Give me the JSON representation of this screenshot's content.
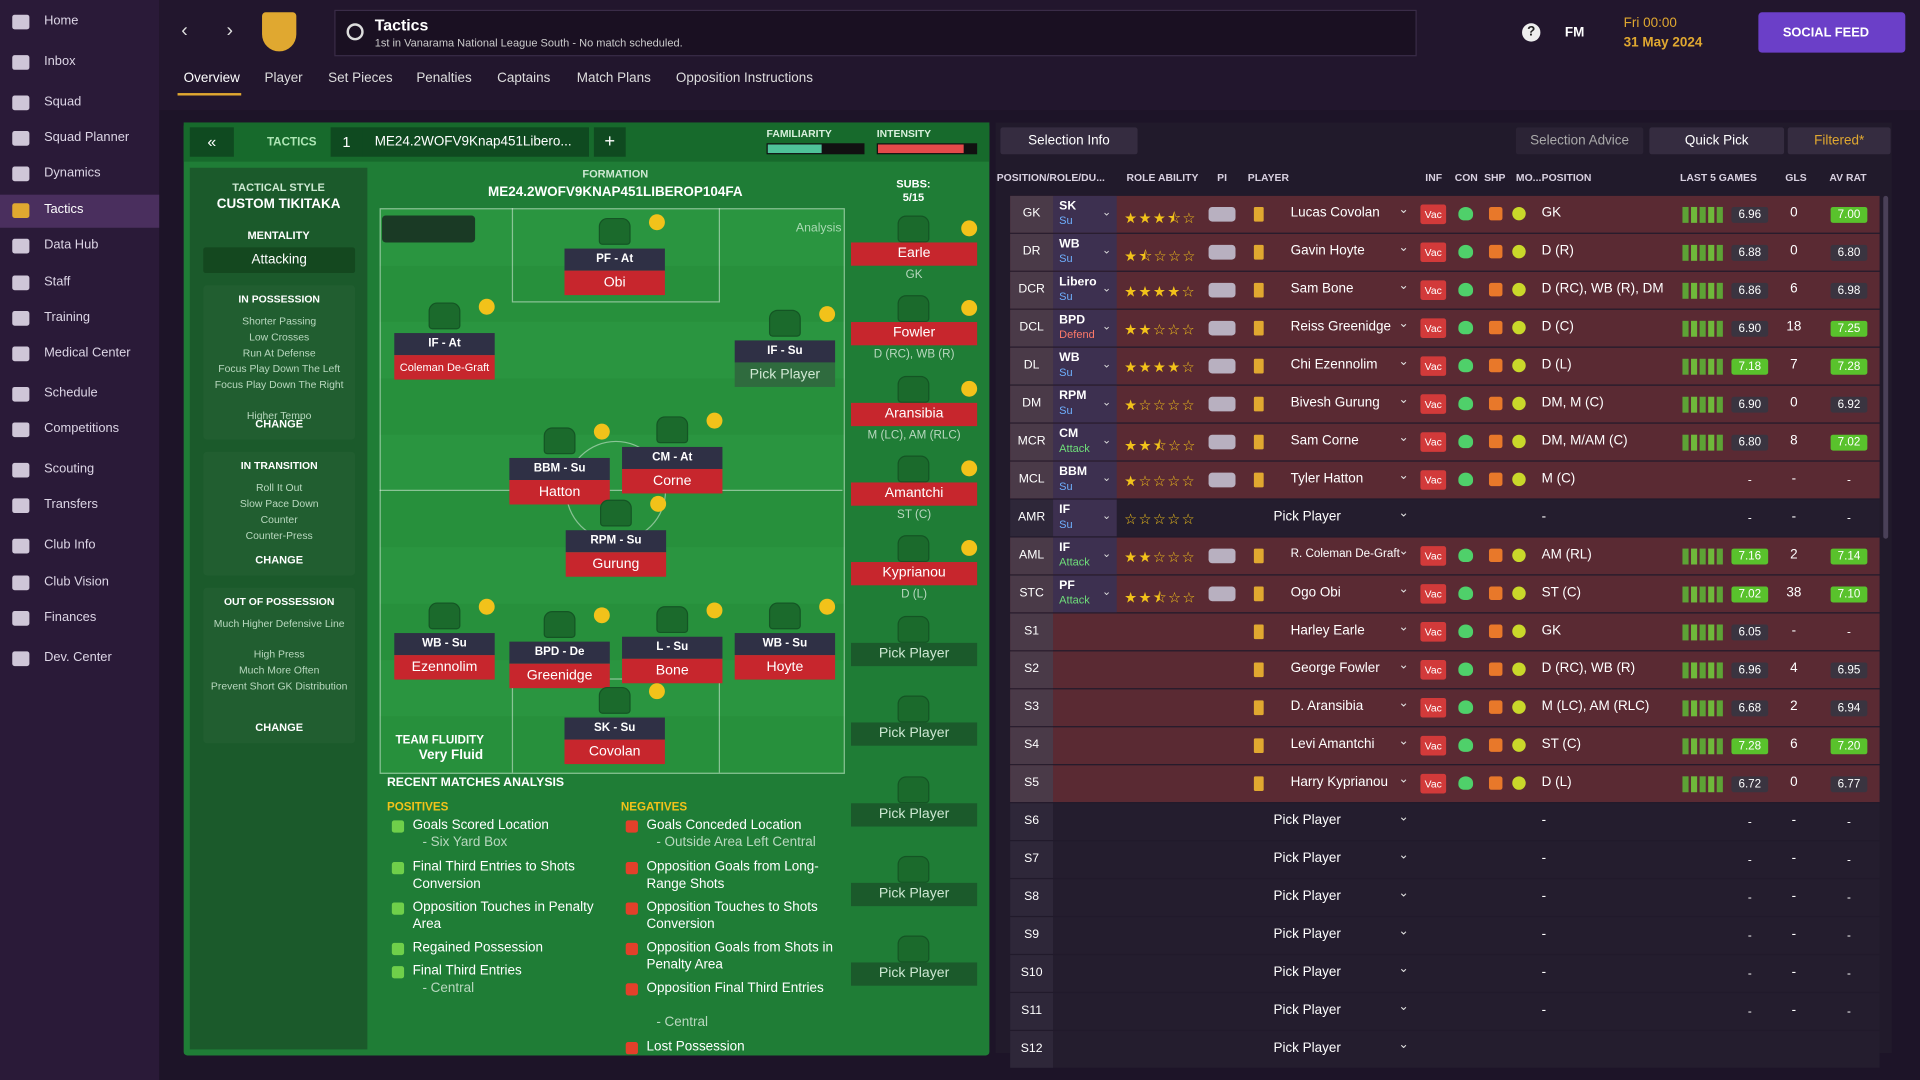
{
  "sidebar": [
    "Home",
    "Inbox",
    "Squad",
    "Squad Planner",
    "Dynamics",
    "Tactics",
    "Data Hub",
    "Staff",
    "Training",
    "Medical Center",
    "Schedule",
    "Competitions",
    "Scouting",
    "Transfers",
    "Club Info",
    "Club Vision",
    "Finances",
    "Dev. Center"
  ],
  "header": {
    "title": "Tactics",
    "subtitle": "1st in Vanarama National League South - No match scheduled.",
    "brand": "FM",
    "time": "Fri 00:00",
    "date": "31 May 2024",
    "social": "SOCIAL FEED"
  },
  "tabs": [
    "Overview",
    "Player",
    "Set Pieces",
    "Penalties",
    "Captains",
    "Match Plans",
    "Opposition Instructions"
  ],
  "tactic": {
    "label": "TACTICS",
    "slot": "1",
    "name": "ME24.2WOFV9Knap451Libero...",
    "familiarity": "FAMILIARITY",
    "intensity": "INTENSITY",
    "style_label": "TACTICAL STYLE",
    "style": "CUSTOM TIKITAKA",
    "mentality_label": "MENTALITY",
    "mentality": "Attacking",
    "change": "CHANGE",
    "sections": [
      {
        "title": "IN POSSESSION",
        "items": [
          "Shorter Passing",
          "Low Crosses",
          "Run At Defense",
          "Focus Play Down The Left",
          "Focus Play Down The Right",
          "Higher Tempo"
        ]
      },
      {
        "title": "IN TRANSITION",
        "items": [
          "Roll It Out",
          "Slow Pace Down",
          "Counter",
          "Counter-Press"
        ]
      },
      {
        "title": "OUT OF POSSESSION",
        "items": [
          "Much Higher Defensive Line",
          "High Press",
          "Much More Often",
          "Prevent Short GK Distribution"
        ]
      }
    ],
    "formation_label": "FORMATION",
    "formation": "ME24.2WOFV9KNAP451LIBEROP104FA",
    "subs_label": "SUBS:",
    "subs_count": "5/15",
    "analysis": "Analysis",
    "fluidity_label": "TEAM FLUIDITY",
    "fluidity": "Very Fluid"
  },
  "pitch": [
    {
      "role": "PF - At",
      "name": "Obi"
    },
    {
      "role": "IF - At",
      "name": "Coleman De-Graft"
    },
    {
      "role": "IF - Su",
      "name": "Pick Player"
    },
    {
      "role": "BBM - Su",
      "name": "Hatton"
    },
    {
      "role": "CM - At",
      "name": "Corne"
    },
    {
      "role": "RPM - Su",
      "name": "Gurung"
    },
    {
      "role": "WB - Su",
      "name": "Ezennolim"
    },
    {
      "role": "BPD - De",
      "name": "Greenidge"
    },
    {
      "role": "L - Su",
      "name": "Bone"
    },
    {
      "role": "WB - Su",
      "name": "Hoyte"
    },
    {
      "role": "SK - Su",
      "name": "Covolan"
    }
  ],
  "subs": [
    {
      "name": "Earle",
      "position": "GK"
    },
    {
      "name": "Fowler",
      "position": "D (RC), WB (R)"
    },
    {
      "name": "Aransibia",
      "position": "M (LC), AM (RLC)"
    },
    {
      "name": "Amantchi",
      "position": "ST (C)"
    },
    {
      "name": "Kyprianou",
      "position": "D (L)"
    },
    {
      "name": "Pick Player"
    },
    {
      "name": "Pick Player"
    },
    {
      "name": "Pick Player"
    },
    {
      "name": "Pick Player"
    },
    {
      "name": "Pick Player"
    }
  ],
  "analysis": {
    "title": "RECENT MATCHES ANALYSIS",
    "positives_label": "POSITIVES",
    "negatives_label": "NEGATIVES",
    "positives": [
      {
        "text": "Goals Scored Location",
        "sub": "- Six Yard Box"
      },
      {
        "text": "Final Third Entries to Shots Conversion"
      },
      {
        "text": "Opposition Touches in Penalty Area"
      },
      {
        "text": "Regained Possession"
      },
      {
        "text": "Final Third Entries",
        "sub": "- Central"
      }
    ],
    "negatives": [
      {
        "text": "Goals Conceded Location",
        "sub": "- Outside Area Left Central"
      },
      {
        "text": "Opposition Goals from Long-Range Shots"
      },
      {
        "text": "Opposition Touches to Shots Conversion"
      },
      {
        "text": "Opposition Goals from Shots in Penalty Area"
      },
      {
        "text": "Opposition Final Third Entries",
        "sub": "- Central"
      },
      {
        "text": "Lost Possession"
      }
    ]
  },
  "selection": {
    "buttons": [
      "Selection Info",
      "Selection Advice",
      "Quick Pick",
      "Filtered*"
    ],
    "columns": [
      "POSITION/ROLE/DU...",
      "ROLE ABILITY",
      "PI",
      "PLAYER",
      "INF",
      "CON",
      "SHP",
      "MO...",
      "POSITION",
      "LAST 5 GAMES",
      "GLS",
      "AV RAT"
    ],
    "rows": [
      {
        "pos": "GK",
        "role": "SK",
        "duty": "Su",
        "stars": 3.5,
        "player": "Lucas Covolan",
        "inf": "Vac",
        "position": "GK",
        "last5": "6.96",
        "gls": "0",
        "avrat": "7.00"
      },
      {
        "pos": "DR",
        "role": "WB",
        "duty": "Su",
        "stars": 1.5,
        "player": "Gavin Hoyte",
        "inf": "Vac",
        "position": "D (R)",
        "last5": "6.88",
        "gls": "0",
        "avrat": "6.80"
      },
      {
        "pos": "DCR",
        "role": "Libero",
        "duty": "Su",
        "stars": 4,
        "player": "Sam Bone",
        "inf": "Vac",
        "position": "D (RC), WB (R), DM",
        "last5": "6.86",
        "gls": "6",
        "avrat": "6.98"
      },
      {
        "pos": "DCL",
        "role": "BPD",
        "duty": "Defend",
        "stars": 2,
        "player": "Reiss Greenidge",
        "inf": "Vac",
        "position": "D (C)",
        "last5": "6.90",
        "gls": "18",
        "avrat": "7.25"
      },
      {
        "pos": "DL",
        "role": "WB",
        "duty": "Su",
        "stars": 4,
        "player": "Chi Ezennolim",
        "inf": "Vac",
        "position": "D (L)",
        "last5": "7.18",
        "gls": "7",
        "avrat": "7.28"
      },
      {
        "pos": "DM",
        "role": "RPM",
        "duty": "Su",
        "stars": 1,
        "player": "Bivesh Gurung",
        "inf": "Vac",
        "position": "DM, M (C)",
        "last5": "6.90",
        "gls": "0",
        "avrat": "6.92"
      },
      {
        "pos": "MCR",
        "role": "CM",
        "duty": "Attack",
        "stars": 2.5,
        "player": "Sam Corne",
        "inf": "Vac",
        "position": "DM, M/AM (C)",
        "last5": "6.80",
        "gls": "8",
        "avrat": "7.02"
      },
      {
        "pos": "MCL",
        "role": "BBM",
        "duty": "Su",
        "stars": 1,
        "player": "Tyler Hatton",
        "inf": "Vac",
        "position": "M (C)",
        "last5": "-",
        "gls": "-",
        "avrat": "-"
      },
      {
        "pos": "AMR",
        "role": "IF",
        "duty": "Su",
        "stars": 0,
        "player": "Pick Player",
        "position": "-",
        "last5": "-",
        "gls": "-",
        "avrat": "-"
      },
      {
        "pos": "AML",
        "role": "IF",
        "duty": "Attack",
        "stars": 2,
        "player": "R. Coleman De-Graft",
        "inf": "Vac",
        "position": "AM (RL)",
        "last5": "7.16",
        "gls": "2",
        "avrat": "7.14"
      },
      {
        "pos": "STC",
        "role": "PF",
        "duty": "Attack",
        "stars": 2.5,
        "player": "Ogo Obi",
        "inf": "Vac",
        "position": "ST (C)",
        "last5": "7.02",
        "gls": "38",
        "avrat": "7.10"
      },
      {
        "pos": "S1",
        "player": "Harley Earle",
        "inf": "Vac",
        "position": "GK",
        "last5": "6.05",
        "gls": "-",
        "avrat": "-"
      },
      {
        "pos": "S2",
        "player": "George Fowler",
        "inf": "Vac",
        "position": "D (RC), WB (R)",
        "last5": "6.96",
        "gls": "4",
        "avrat": "6.95"
      },
      {
        "pos": "S3",
        "player": "D. Aransibia",
        "inf": "Vac",
        "position": "M (LC), AM (RLC)",
        "last5": "6.68",
        "gls": "2",
        "avrat": "6.94"
      },
      {
        "pos": "S4",
        "player": "Levi Amantchi",
        "inf": "Vac",
        "position": "ST (C)",
        "last5": "7.28",
        "gls": "6",
        "avrat": "7.20"
      },
      {
        "pos": "S5",
        "player": "Harry Kyprianou",
        "inf": "Vac",
        "position": "D (L)",
        "last5": "6.72",
        "gls": "0",
        "avrat": "6.77"
      },
      {
        "pos": "S6",
        "player": "Pick Player",
        "position": "-",
        "last5": "-",
        "gls": "-",
        "avrat": "-"
      },
      {
        "pos": "S7",
        "player": "Pick Player",
        "position": "-",
        "last5": "-",
        "gls": "-",
        "avrat": "-"
      },
      {
        "pos": "S8",
        "player": "Pick Player",
        "position": "-",
        "last5": "-",
        "gls": "-",
        "avrat": "-"
      },
      {
        "pos": "S9",
        "player": "Pick Player",
        "position": "-",
        "last5": "-",
        "gls": "-",
        "avrat": "-"
      },
      {
        "pos": "S10",
        "player": "Pick Player",
        "position": "-",
        "last5": "-",
        "gls": "-",
        "avrat": "-"
      },
      {
        "pos": "S11",
        "player": "Pick Player",
        "position": "-",
        "last5": "-",
        "gls": "-",
        "avrat": "-"
      },
      {
        "pos": "S12",
        "player": "Pick Player"
      }
    ]
  }
}
